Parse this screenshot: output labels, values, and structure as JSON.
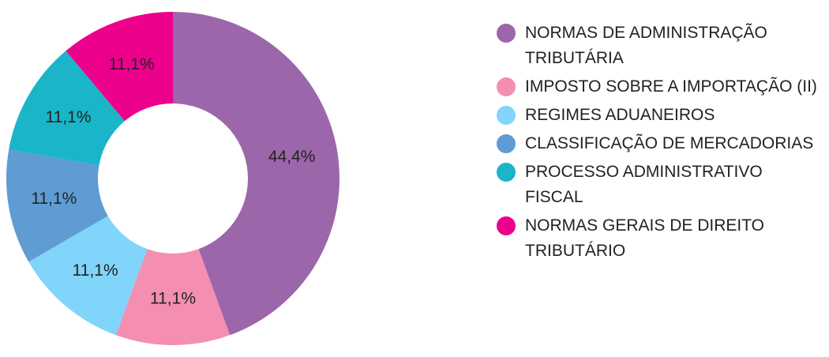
{
  "chart_data": {
    "type": "donut",
    "categories": [
      "NORMAS DE ADMINISTRAÇÃO TRIBUTÁRIA",
      "IMPOSTO SOBRE A IMPORTAÇÃO (II)",
      "REGIMES ADUANEIROS",
      "CLASSIFICAÇÃO DE MERCADORIAS",
      "PROCESSO ADMINISTRATIVO FISCAL",
      "NORMAS GERAIS DE DIREITO TRIBUTÁRIO"
    ],
    "values": [
      44.4,
      11.1,
      11.1,
      11.1,
      11.1,
      11.1
    ],
    "value_labels": [
      "44,4%",
      "11,1%",
      "11,1%",
      "11,1%",
      "11,1%",
      "11,1%"
    ],
    "colors": [
      "#9c66ab",
      "#f48fb1",
      "#81d4fa",
      "#5e9cd3",
      "#1ab5c9",
      "#ec008c"
    ],
    "legend": "right"
  }
}
